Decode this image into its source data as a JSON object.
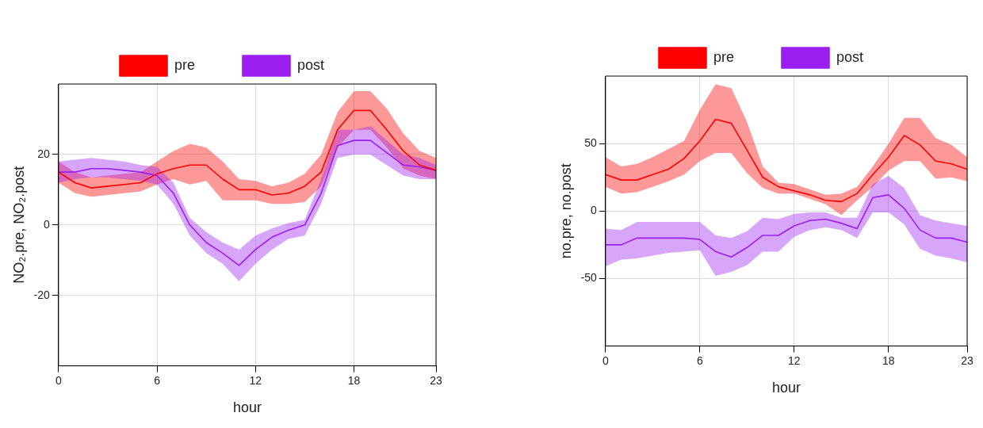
{
  "chart_data": [
    {
      "type": "line",
      "xlabel": "hour",
      "ylabel": "NO₂.pre, NO₂.post",
      "x": [
        0,
        1,
        2,
        3,
        4,
        5,
        6,
        7,
        8,
        9,
        10,
        11,
        12,
        13,
        14,
        15,
        16,
        17,
        18,
        19,
        20,
        21,
        22,
        23
      ],
      "xlim": [
        0,
        23
      ],
      "xticks": [
        0,
        6,
        12,
        18,
        23
      ],
      "ylim": [
        -40,
        40
      ],
      "yticks": [
        -20,
        0,
        20
      ],
      "grid": true,
      "legend": "top",
      "marker": "none",
      "line_style": "solid",
      "series": [
        {
          "name": "pre",
          "color": "#ff0000",
          "values": [
            15,
            12,
            10.5,
            11,
            11.5,
            12,
            14.5,
            16,
            17,
            17,
            13,
            10,
            10,
            8.5,
            9,
            11,
            15,
            27,
            32.5,
            32.5,
            27,
            21,
            17,
            15.5
          ],
          "lower": [
            12,
            9,
            8,
            8.5,
            9,
            9.5,
            11.5,
            13,
            11.5,
            12.5,
            7,
            7,
            7,
            6,
            6,
            6.5,
            11,
            22,
            27,
            27,
            22,
            16,
            14,
            13
          ],
          "upper": [
            18,
            15,
            13.5,
            14,
            14.5,
            15,
            18,
            21,
            23,
            22,
            18,
            13,
            12.5,
            11,
            12,
            14.5,
            20,
            32,
            38,
            38,
            33,
            26,
            21,
            19
          ]
        },
        {
          "name": "post",
          "color": "#9b1ff0",
          "values": [
            15,
            15,
            16,
            16,
            15.5,
            15,
            14,
            9,
            0,
            -5,
            -8,
            -11.5,
            -7,
            -3.5,
            -1.5,
            0,
            9,
            22.5,
            24,
            24,
            20.5,
            17,
            16.5,
            15.5
          ],
          "lower": [
            12,
            13,
            13.5,
            13.5,
            13,
            12.5,
            11.5,
            6,
            -3,
            -8,
            -11,
            -16,
            -11,
            -7,
            -4,
            -3,
            6,
            19,
            20,
            20,
            17,
            14,
            13,
            13
          ],
          "upper": [
            18,
            18.5,
            19,
            18.5,
            18,
            17,
            16.5,
            12,
            2,
            -2,
            -5,
            -7,
            -3,
            -1,
            0.5,
            1.5,
            13,
            27,
            27,
            28,
            24,
            20,
            19,
            17
          ]
        }
      ]
    },
    {
      "type": "line",
      "xlabel": "hour",
      "ylabel": "no.pre, no.post",
      "x": [
        0,
        1,
        2,
        3,
        4,
        5,
        6,
        7,
        8,
        9,
        10,
        11,
        12,
        13,
        14,
        15,
        16,
        17,
        18,
        19,
        20,
        21,
        22,
        23
      ],
      "xlim": [
        0,
        23
      ],
      "xticks": [
        0,
        6,
        12,
        18,
        23
      ],
      "ylim": [
        -100,
        100
      ],
      "yticks": [
        -50,
        0,
        50
      ],
      "grid": true,
      "legend": "top",
      "marker": "none",
      "line_style": "solid",
      "series": [
        {
          "name": "pre",
          "color": "#ff0000",
          "values": [
            27,
            23,
            23,
            27,
            31,
            39,
            52,
            68,
            65,
            45,
            25,
            18,
            15,
            12,
            8,
            7,
            13,
            27,
            40,
            56,
            49,
            37,
            35,
            31
          ],
          "lower": [
            18,
            13,
            14,
            18,
            22,
            27,
            37,
            43,
            43,
            28,
            17,
            13,
            13,
            9,
            5,
            -3,
            8,
            18,
            30,
            37,
            37,
            24,
            25,
            22
          ],
          "upper": [
            40,
            33,
            35,
            40,
            46,
            52,
            75,
            94,
            91,
            66,
            33,
            21,
            20,
            16,
            12,
            13,
            18,
            33,
            50,
            69,
            69,
            54,
            49,
            40
          ]
        },
        {
          "name": "post",
          "color": "#9b1ff0",
          "values": [
            -25,
            -25,
            -20,
            -20,
            -20,
            -20,
            -21,
            -30,
            -34,
            -27,
            -18,
            -18,
            -11,
            -7,
            -6,
            -9,
            -13,
            10,
            12,
            2,
            -14,
            -20,
            -20,
            -23
          ],
          "lower": [
            -41,
            -36,
            -35,
            -33,
            -31,
            -30,
            -29,
            -48,
            -45,
            -40,
            -30,
            -30,
            -19,
            -14,
            -12,
            -14,
            -20,
            -1,
            -1,
            -10,
            -28,
            -33,
            -35,
            -38
          ],
          "upper": [
            -13,
            -14,
            -8,
            -8,
            -8,
            -8,
            -8,
            -18,
            -20,
            -15,
            -5,
            -6,
            -2,
            -1,
            -1,
            -5,
            -5,
            20,
            26,
            17,
            -3,
            -7,
            -9,
            -11
          ]
        }
      ]
    }
  ]
}
